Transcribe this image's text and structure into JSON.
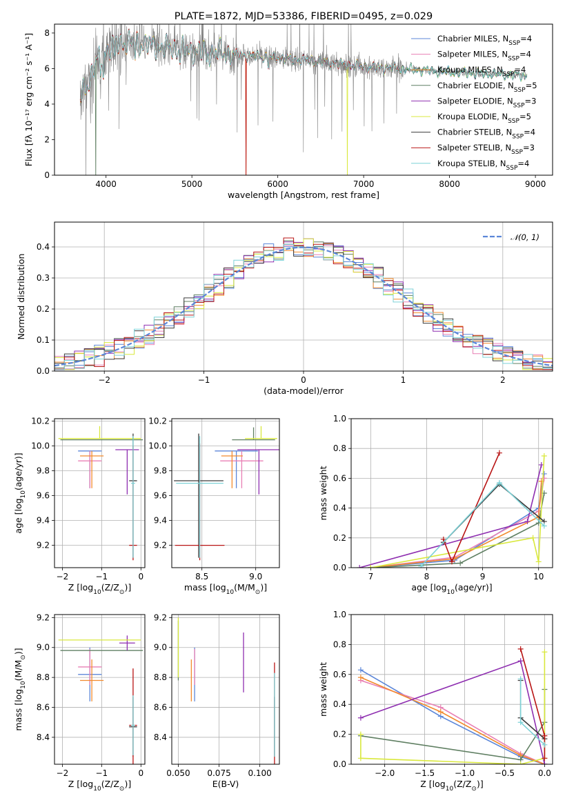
{
  "colors": [
    "#5b86d8",
    "#e87fb4",
    "#f28a2c",
    "#5f7f62",
    "#8e2eb0",
    "#d9e83c",
    "#3a3a3a",
    "#b81313",
    "#7dd2d7"
  ],
  "chart_data": [
    {
      "type": "line",
      "title": "PLATE=1872, MJD=53386, FIBERID=0495, z=0.029",
      "xlabel": "wavelength [Angstrom, rest frame]",
      "ylabel": "Flux [fλ 10⁻¹⁷ erg cm⁻² s⁻¹ A⁻¹]",
      "xlim": [
        3400,
        9200
      ],
      "ylim": [
        0,
        8.5
      ],
      "xticks": [
        4000,
        5000,
        6000,
        7000,
        8000,
        9000
      ],
      "yticks": [
        0,
        2,
        4,
        6,
        8
      ],
      "legend_position": "upper right",
      "legend": [
        "Chabrier MILES, N_SSP=4",
        "Salpeter MILES, N_SSP=4",
        "Kroupa MILES, N_SSP=4",
        "Chabrier ELODIE, N_SSP=5",
        "Salpeter ELODIE, N_SSP=3",
        "Kroupa ELODIE, N_SSP=5",
        "Chabrier STELIB, N_SSP=4",
        "Salpeter STELIB, N_SSP=3",
        "Kroupa STELIB, N_SSP=4"
      ],
      "legend_labels": [
        {
          "pre": "Chabrier MILES, N",
          "sub": "SSP",
          "post": "=4"
        },
        {
          "pre": "Salpeter MILES, N",
          "sub": "SSP",
          "post": "=4"
        },
        {
          "pre": "Kroupa MILES, N",
          "sub": "SSP",
          "post": "=4"
        },
        {
          "pre": "Chabrier ELODIE, N",
          "sub": "SSP",
          "post": "=5"
        },
        {
          "pre": "Salpeter ELODIE, N",
          "sub": "SSP",
          "post": "=3"
        },
        {
          "pre": "Kroupa ELODIE, N",
          "sub": "SSP",
          "post": "=5"
        },
        {
          "pre": "Chabrier STELIB, N",
          "sub": "SSP",
          "post": "=4"
        },
        {
          "pre": "Salpeter STELIB, N",
          "sub": "SSP",
          "post": "=3"
        },
        {
          "pre": "Kroupa STELIB, N",
          "sub": "SSP",
          "post": "=4"
        }
      ],
      "observed_spectrum_color": "#808080",
      "continuum_points": [
        [
          3700,
          4.4
        ],
        [
          3800,
          5.3
        ],
        [
          3900,
          6.6
        ],
        [
          4000,
          7.0
        ],
        [
          4100,
          7.4
        ],
        [
          4300,
          7.5
        ],
        [
          4500,
          7.3
        ],
        [
          5000,
          7.0
        ],
        [
          5500,
          6.8
        ],
        [
          6000,
          6.6
        ],
        [
          6500,
          6.4
        ],
        [
          7000,
          6.1
        ],
        [
          7400,
          6.0
        ],
        [
          8000,
          5.8
        ],
        [
          8500,
          5.7
        ],
        [
          8900,
          5.6
        ]
      ],
      "model_wavelength_ranges": [
        [
          3700,
          7420
        ],
        [
          3700,
          8900
        ]
      ]
    },
    {
      "type": "histogram",
      "xlabel": "(data-model)/error",
      "ylabel": "Normed distribution",
      "xlim": [
        -2.5,
        2.5
      ],
      "ylim": [
        0,
        0.48
      ],
      "xticks": [
        -2,
        -1,
        0,
        1,
        2
      ],
      "xtick_labels": [
        "−2",
        "−1",
        "0",
        "1",
        "2"
      ],
      "yticks": [
        0.0,
        0.1,
        0.2,
        0.3,
        0.4
      ],
      "ytick_labels": [
        "0.0",
        "0.1",
        "0.2",
        "0.3",
        "0.4"
      ],
      "bin_width": 0.1,
      "reference_curve": {
        "label": "𝒩(0, 1)",
        "mean": 0,
        "sigma": 1,
        "color": "#5b86d8",
        "style": "dashed"
      },
      "legend_position": "upper right"
    },
    {
      "type": "scatter",
      "xlabel": "Z [log10(Z/Z☉)]",
      "xlabel_parts": {
        "pre": "Z [log",
        "sub": "10",
        "mid": "(Z/Z",
        "sub2": "⊙",
        "post": ")]"
      },
      "ylabel": "age [log10(age/yr)]",
      "xlim": [
        -2.2,
        0.1
      ],
      "ylim": [
        9.02,
        10.22
      ],
      "xticks": [
        -2,
        -1,
        0
      ],
      "xtick_labels": [
        "−2",
        "−1",
        "0"
      ],
      "yticks": [
        9.2,
        9.4,
        9.6,
        9.8,
        10.0,
        10.2
      ],
      "ytick_labels": [
        "9.2",
        "9.4",
        "9.6",
        "9.8",
        "10.0",
        "10.2"
      ],
      "points": [
        {
          "x": -1.3,
          "y": 9.96,
          "xerr": 0.3,
          "yerr_lo": 0.3,
          "yerr_hi": 0.0
        },
        {
          "x": -1.3,
          "y": 9.88,
          "xerr": 0.3,
          "yerr_lo": 0.22,
          "yerr_hi": 0.08
        },
        {
          "x": -1.25,
          "y": 9.92,
          "xerr": 0.3,
          "yerr_lo": 0.26,
          "yerr_hi": 0.04
        },
        {
          "x": -1.0,
          "y": 10.05,
          "xerr": 1.05,
          "yerr_lo": 0.0,
          "yerr_hi": 0.0
        },
        {
          "x": -0.35,
          "y": 9.97,
          "xerr": 0.3,
          "yerr_lo": 0.36,
          "yerr_hi": 0.0
        },
        {
          "x": -1.05,
          "y": 10.06,
          "xerr": 1.05,
          "yerr_lo": 0.0,
          "yerr_hi": 0.1
        },
        {
          "x": -0.2,
          "y": 9.72,
          "xerr": 0.1,
          "yerr_lo": 0.62,
          "yerr_hi": 0.38
        },
        {
          "x": -0.2,
          "y": 9.2,
          "xerr": 0.1,
          "yerr_lo": 0.12,
          "yerr_hi": 0.8
        },
        {
          "x": -0.2,
          "y": 9.7,
          "xerr": 0.05,
          "yerr_lo": 0.6,
          "yerr_hi": 0.38
        }
      ]
    },
    {
      "type": "scatter",
      "xlabel": "mass [log10(M/M☉)]",
      "xlabel_parts": {
        "pre": "mass [log",
        "sub": "10",
        "mid": "(M/M",
        "sub2": "⊙",
        "post": ")]"
      },
      "xlim": [
        8.22,
        9.22
      ],
      "ylim": [
        9.02,
        10.22
      ],
      "xticks": [
        8.5,
        9.0
      ],
      "xtick_labels": [
        "8.5",
        "9.0"
      ],
      "yticks": [
        9.2,
        9.4,
        9.6,
        9.8,
        10.0,
        10.2
      ],
      "ytick_labels": [
        "9.2",
        "9.4",
        "9.6",
        "9.8",
        "10.0",
        "10.2"
      ],
      "points": [
        {
          "x": 8.82,
          "y": 9.96,
          "xerr": 0.2,
          "yerr_lo": 0.3,
          "yerr_hi": 0.0
        },
        {
          "x": 8.87,
          "y": 9.88,
          "xerr": 0.2,
          "yerr_lo": 0.22,
          "yerr_hi": 0.08
        },
        {
          "x": 8.78,
          "y": 9.92,
          "xerr": 0.1,
          "yerr_lo": 0.26,
          "yerr_hi": 0.04
        },
        {
          "x": 8.98,
          "y": 10.05,
          "xerr": 0.2,
          "yerr_lo": 0.0,
          "yerr_hi": 0.1
        },
        {
          "x": 9.03,
          "y": 9.97,
          "xerr": 0.2,
          "yerr_lo": 0.36,
          "yerr_hi": 0.0
        },
        {
          "x": 9.05,
          "y": 10.06,
          "xerr": 0.15,
          "yerr_lo": 0.0,
          "yerr_hi": 0.1
        },
        {
          "x": 8.47,
          "y": 9.72,
          "xerr": 0.23,
          "yerr_lo": 0.62,
          "yerr_hi": 0.38
        },
        {
          "x": 8.48,
          "y": 9.2,
          "xerr": 0.23,
          "yerr_lo": 0.12,
          "yerr_hi": 0.82
        },
        {
          "x": 8.48,
          "y": 9.7,
          "xerr": 0.22,
          "yerr_lo": 0.6,
          "yerr_hi": 0.38
        }
      ]
    },
    {
      "type": "line",
      "xlabel": "age [log10(age/yr)]",
      "xlabel_parts": {
        "pre": "age  [log",
        "sub": "10",
        "mid": "(age/yr)]",
        "sub2": "",
        "post": ""
      },
      "ylabel": "mass weight",
      "xlim": [
        6.65,
        10.25
      ],
      "ylim": [
        0,
        1.0
      ],
      "xticks": [
        7,
        8,
        9,
        10
      ],
      "xtick_labels": [
        "7",
        "8",
        "9",
        "10"
      ],
      "yticks": [
        0.0,
        0.2,
        0.4,
        0.6,
        0.8,
        1.0
      ],
      "ytick_labels": [
        "0.0",
        "0.2",
        "0.4",
        "0.6",
        "0.8",
        "1.0"
      ],
      "series": [
        {
          "x": [
            7.0,
            8.5,
            10.0,
            10.1
          ],
          "y": [
            0.0,
            0.05,
            0.4,
            0.63
          ]
        },
        {
          "x": [
            7.0,
            8.5,
            10.0,
            10.1
          ],
          "y": [
            0.0,
            0.07,
            0.38,
            0.6
          ]
        },
        {
          "x": [
            7.0,
            8.5,
            10.0,
            10.05
          ],
          "y": [
            0.0,
            0.06,
            0.34,
            0.58
          ]
        },
        {
          "x": [
            7.0,
            8.6,
            10.0,
            10.1
          ],
          "y": [
            0.0,
            0.03,
            0.3,
            0.5
          ]
        },
        {
          "x": [
            6.8,
            9.8,
            10.05
          ],
          "y": [
            0.0,
            0.31,
            0.69
          ]
        },
        {
          "x": [
            7.0,
            9.9,
            10.0,
            10.1
          ],
          "y": [
            0.0,
            0.2,
            0.04,
            0.75
          ]
        },
        {
          "x": [
            8.3,
            9.3,
            10.1
          ],
          "y": [
            0.17,
            0.56,
            0.31
          ]
        },
        {
          "x": [
            8.3,
            8.45,
            9.3
          ],
          "y": [
            0.19,
            0.04,
            0.77
          ]
        },
        {
          "x": [
            7.9,
            9.3,
            10.1
          ],
          "y": [
            0.01,
            0.57,
            0.28
          ]
        }
      ]
    },
    {
      "type": "scatter",
      "xlabel": "Z [log10(Z/Z☉)]",
      "xlabel_parts": {
        "pre": "Z [log",
        "sub": "10",
        "mid": "(Z/Z",
        "sub2": "⊙",
        "post": ")]"
      },
      "ylabel": "mass [log10(M/M☉)]",
      "ylabel_parts": {
        "pre": "mass [log",
        "sub": "10",
        "mid": "(M/M",
        "sub2": "⊙",
        "post": ")]"
      },
      "xlim": [
        -2.2,
        0.1
      ],
      "ylim": [
        8.22,
        9.22
      ],
      "xticks": [
        -2,
        -1,
        0
      ],
      "xtick_labels": [
        "−2",
        "−1",
        "0"
      ],
      "yticks": [
        8.4,
        8.6,
        8.8,
        9.0,
        9.2
      ],
      "ytick_labels": [
        "8.4",
        "8.6",
        "8.8",
        "9.0",
        "9.2"
      ],
      "points": [
        {
          "x": -1.3,
          "y": 8.82,
          "xerr": 0.3,
          "yerr": 0.18
        },
        {
          "x": -1.3,
          "y": 8.87,
          "xerr": 0.3,
          "yerr": 0.12
        },
        {
          "x": -1.25,
          "y": 8.78,
          "xerr": 0.3,
          "yerr": 0.14
        },
        {
          "x": -1.0,
          "y": 8.98,
          "xerr": 1.05,
          "yerr": 0.0
        },
        {
          "x": -0.35,
          "y": 9.03,
          "xerr": 0.2,
          "yerr": 0.05
        },
        {
          "x": -1.05,
          "y": 9.05,
          "xerr": 1.05,
          "yerr": 0.0
        },
        {
          "x": -0.2,
          "y": 8.47,
          "xerr": 0.1,
          "yerr": 0.2
        },
        {
          "x": -0.2,
          "y": 8.48,
          "xerr": 0.1,
          "yerr": 0.38
        },
        {
          "x": -0.2,
          "y": 8.48,
          "xerr": 0.05,
          "yerr": 0.2
        }
      ]
    },
    {
      "type": "scatter",
      "xlabel": "E(B-V)",
      "xlim": [
        0.046,
        0.112
      ],
      "ylim": [
        8.22,
        9.22
      ],
      "xticks": [
        0.05,
        0.075,
        0.1
      ],
      "xtick_labels": [
        "0.050",
        "0.075",
        "0.100"
      ],
      "yticks": [
        8.4,
        8.6,
        8.8,
        9.0,
        9.2
      ],
      "ytick_labels": [
        "8.4",
        "8.6",
        "8.8",
        "9.0",
        "9.2"
      ],
      "points": [
        {
          "x": 0.06,
          "y": 8.82,
          "yerr": 0.18
        },
        {
          "x": 0.06,
          "y": 8.87,
          "yerr": 0.12
        },
        {
          "x": 0.058,
          "y": 8.78,
          "yerr": 0.14
        },
        {
          "x": 0.05,
          "y": 8.98,
          "yerr": 0.2
        },
        {
          "x": 0.09,
          "y": 8.9,
          "yerr": 0.2
        },
        {
          "x": 0.05,
          "y": 9.0,
          "yerr": 0.2
        },
        {
          "x": 0.109,
          "y": 8.47,
          "yerr": 0.2
        },
        {
          "x": 0.109,
          "y": 8.55,
          "yerr": 0.35
        },
        {
          "x": 0.109,
          "y": 8.55,
          "yerr": 0.28
        }
      ]
    },
    {
      "type": "line",
      "xlabel": "Z [log10(Z/Z☉)]",
      "xlabel_parts": {
        "pre": "Z [log",
        "sub": "10",
        "mid": "(Z/Z",
        "sub2": "⊙",
        "post": ")]"
      },
      "ylabel": "mass weight",
      "xlim": [
        -2.42,
        0.1
      ],
      "ylim": [
        0,
        1.0
      ],
      "xticks": [
        -2.0,
        -1.5,
        -1.0,
        -0.5,
        0.0
      ],
      "xtick_labels": [
        "−2.0",
        "−1.5",
        "−1.0",
        "−0.5",
        "0.0"
      ],
      "yticks": [
        0.0,
        0.2,
        0.4,
        0.6,
        0.8,
        1.0
      ],
      "ytick_labels": [
        "0.0",
        "0.2",
        "0.4",
        "0.6",
        "0.8",
        "1.0"
      ],
      "series": [
        {
          "x": [
            -2.3,
            -1.3,
            -0.3,
            0.0
          ],
          "y": [
            0.63,
            0.32,
            0.05,
            0.0
          ]
        },
        {
          "x": [
            -2.3,
            -1.3,
            -0.3,
            0.0
          ],
          "y": [
            0.56,
            0.38,
            0.07,
            0.0
          ]
        },
        {
          "x": [
            -2.3,
            -1.3,
            -0.3,
            0.0
          ],
          "y": [
            0.58,
            0.35,
            0.06,
            0.0
          ]
        },
        {
          "x": [
            -2.3,
            -0.3,
            0.0,
            0.0
          ],
          "y": [
            0.19,
            0.03,
            0.28,
            0.5
          ]
        },
        {
          "x": [
            -2.3,
            -0.3,
            0.0
          ],
          "y": [
            0.31,
            0.69,
            0.0
          ]
        },
        {
          "x": [
            -2.3,
            -2.3,
            -0.3,
            0.0,
            0.0
          ],
          "y": [
            0.2,
            0.04,
            0.0,
            0.04,
            0.75
          ]
        },
        {
          "x": [
            -0.3,
            -0.3,
            0.0
          ],
          "y": [
            0.56,
            0.31,
            0.17
          ]
        },
        {
          "x": [
            -0.3,
            0.0,
            0.0
          ],
          "y": [
            0.77,
            0.19,
            0.04
          ]
        },
        {
          "x": [
            -0.3,
            -0.3,
            0.0
          ],
          "y": [
            0.57,
            0.28,
            0.13
          ]
        }
      ]
    }
  ]
}
